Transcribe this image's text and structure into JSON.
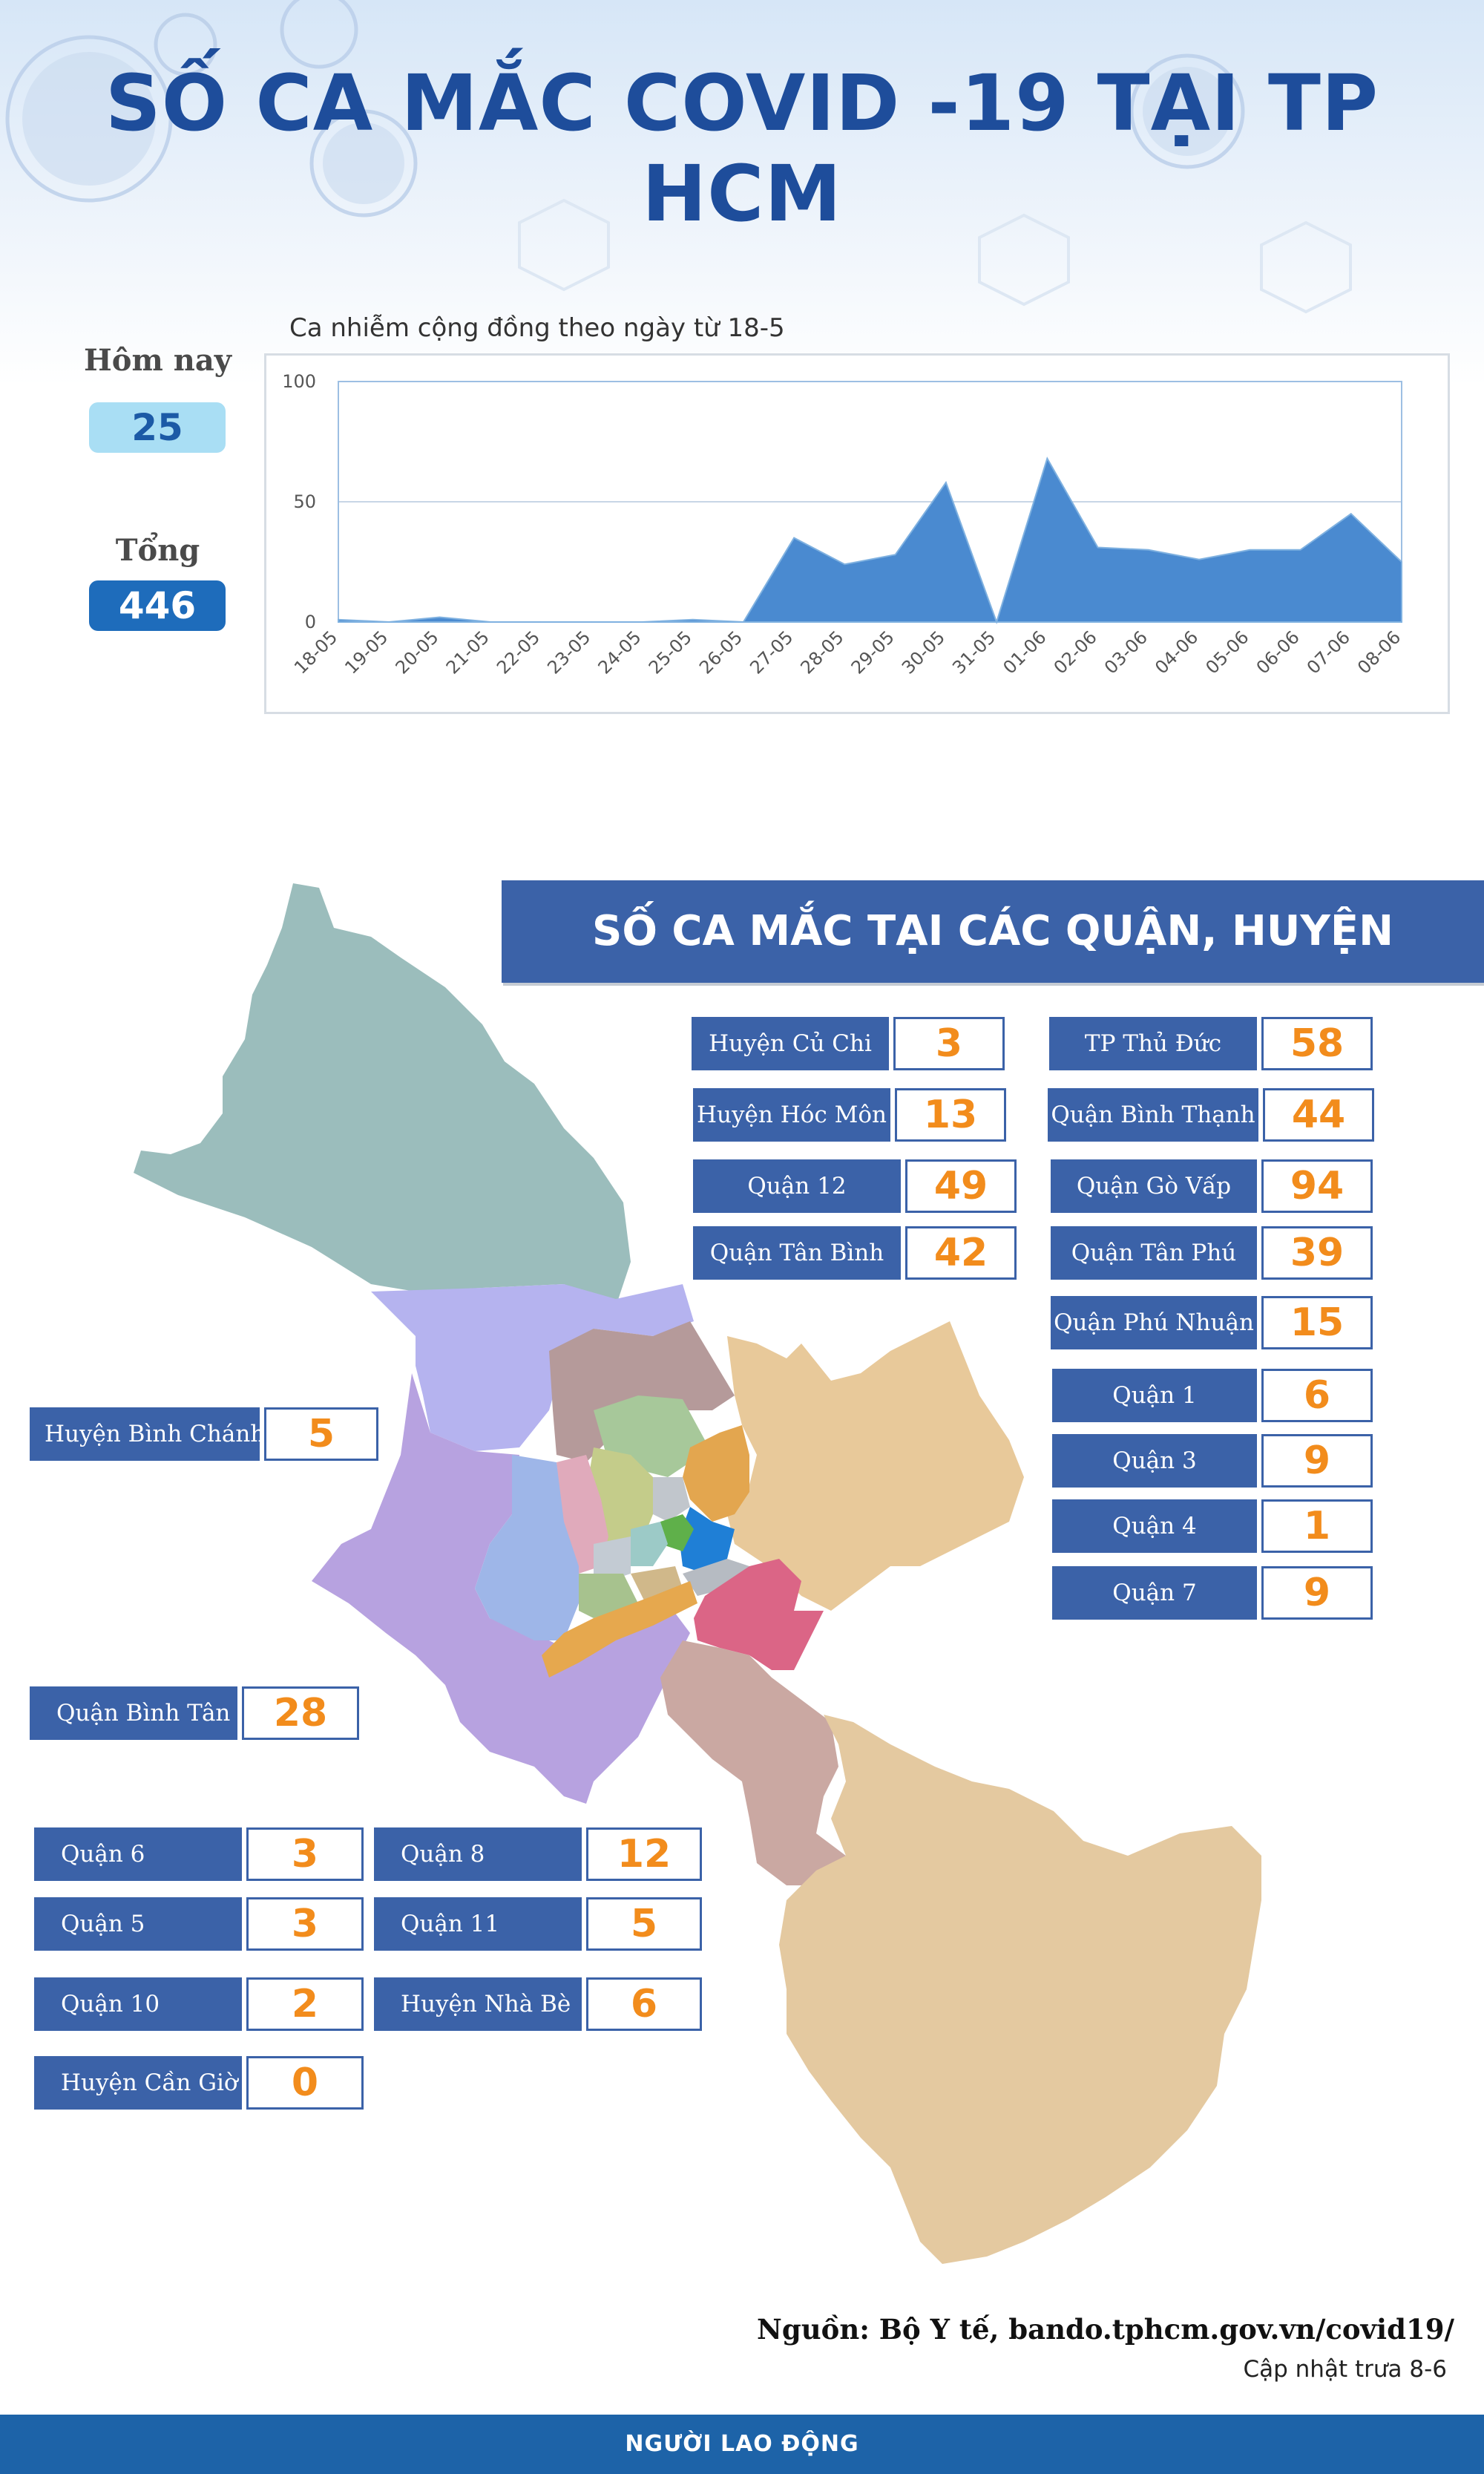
{
  "header": {
    "title": "SỐ CA MẮC COVID -19 TẠI TP HCM"
  },
  "stats": {
    "today_label": "Hôm nay",
    "today_value": "25",
    "total_label": "Tổng",
    "total_value": "446"
  },
  "chart_data": {
    "type": "area",
    "title": "Ca nhiễm cộng đồng theo ngày từ 18-5",
    "categories": [
      "18-05",
      "19-05",
      "20-05",
      "21-05",
      "22-05",
      "23-05",
      "24-05",
      "25-05",
      "26-05",
      "27-05",
      "28-05",
      "29-05",
      "30-05",
      "31-05",
      "01-06",
      "02-06",
      "03-06",
      "04-06",
      "05-06",
      "06-06",
      "07-06",
      "08-06"
    ],
    "series": [
      {
        "values": [
          1,
          0,
          2,
          0,
          0,
          0,
          0,
          1,
          0,
          35,
          24,
          28,
          58,
          0,
          68,
          31,
          30,
          26,
          30,
          30,
          45,
          25
        ]
      }
    ],
    "yticks": [
      "0",
      "50",
      "100"
    ],
    "ylim": [
      0,
      100
    ],
    "grid": true,
    "fill_color": "#4a8ad0",
    "line_color": "#7fb1e0"
  },
  "districts": {
    "title": "SỐ CA MẮC TẠI CÁC QUẬN, HUYỆN",
    "items": [
      {
        "name": "Huyện Củ Chi",
        "value": "3"
      },
      {
        "name": "Huyện Hóc Môn",
        "value": "13"
      },
      {
        "name": "Quận 12",
        "value": "49"
      },
      {
        "name": "Quận Tân Bình",
        "value": "42"
      },
      {
        "name": "TP Thủ Đức",
        "value": "58"
      },
      {
        "name": "Quận Bình Thạnh",
        "value": "44"
      },
      {
        "name": "Quận Gò Vấp",
        "value": "94"
      },
      {
        "name": "Quận Tân Phú",
        "value": "39"
      },
      {
        "name": "Quận Phú Nhuận",
        "value": "15"
      },
      {
        "name": "Quận 1",
        "value": "6"
      },
      {
        "name": "Quận 3",
        "value": "9"
      },
      {
        "name": "Quận 4",
        "value": "1"
      },
      {
        "name": "Quận 7",
        "value": "9"
      },
      {
        "name": "Huyện Bình Chánh",
        "value": "5"
      },
      {
        "name": "Quận Bình Tân",
        "value": "28"
      },
      {
        "name": "Quận 6",
        "value": "3"
      },
      {
        "name": "Quận 5",
        "value": "3"
      },
      {
        "name": "Quận 10",
        "value": "2"
      },
      {
        "name": "Huyện Cần Giờ",
        "value": "0"
      },
      {
        "name": "Quận 8",
        "value": "12"
      },
      {
        "name": "Quận 11",
        "value": "5"
      },
      {
        "name": "Huyện Nhà Bè",
        "value": "6"
      }
    ]
  },
  "footer": {
    "source": "Nguồn: Bộ Y tế, bando.tphcm.gov.vn/covid19/",
    "updated": "Cập nhật trưa 8-6",
    "brand": "NGƯỜI LAO ĐỘNG"
  }
}
